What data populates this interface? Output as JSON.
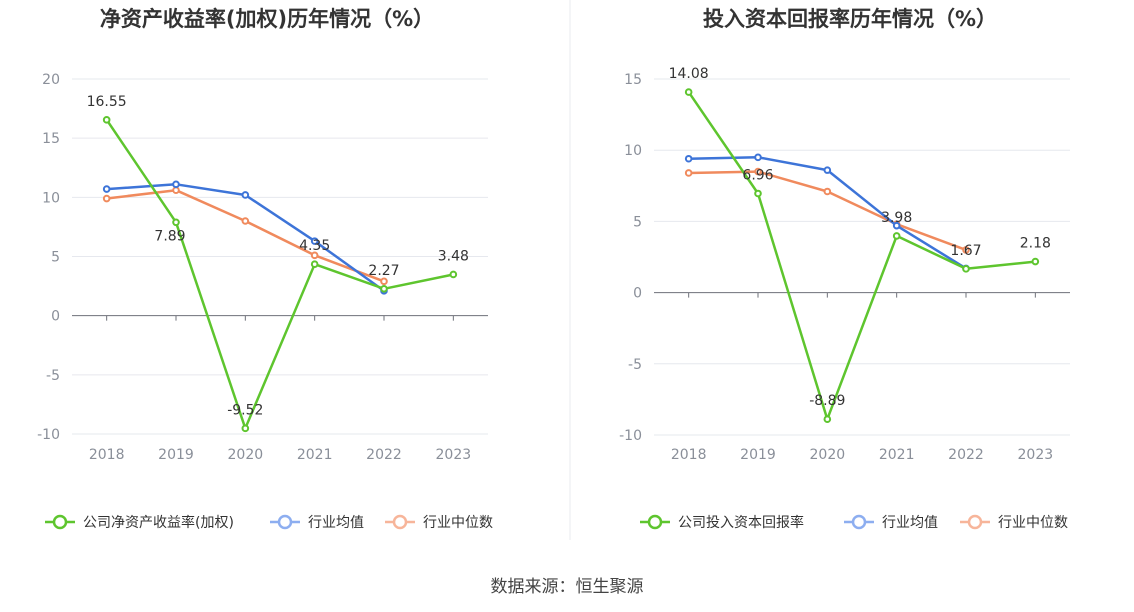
{
  "source_text": "数据来源：恒生聚源",
  "chart_data": [
    {
      "type": "line",
      "title": "净资产收益率(加权)历年情况（%）",
      "categories": [
        "2018",
        "2019",
        "2020",
        "2021",
        "2022",
        "2023"
      ],
      "ylim": [
        -10,
        20
      ],
      "yticks": [
        20,
        15,
        10,
        5,
        0,
        -5,
        -10
      ],
      "grid": true,
      "legend_position": "bottom",
      "series": [
        {
          "name": "公司净资产收益率(加权)",
          "color": "#5ec52e",
          "values": [
            16.55,
            7.89,
            -9.52,
            4.35,
            2.27,
            3.48
          ],
          "labels": [
            "16.55",
            "7.89",
            "-9.52",
            "4.35",
            "2.27",
            "3.48"
          ]
        },
        {
          "name": "行业均值",
          "color": "#3d74d8",
          "values": [
            10.7,
            11.1,
            10.2,
            6.3,
            2.1,
            null
          ]
        },
        {
          "name": "行业中位数",
          "color": "#f08a5d",
          "values": [
            9.9,
            10.6,
            8.0,
            5.1,
            2.9,
            null
          ]
        }
      ],
      "legend_colors": [
        "#5ec52e",
        "#8daef0",
        "#f7b59a"
      ]
    },
    {
      "type": "line",
      "title": "投入资本回报率历年情况（%）",
      "categories": [
        "2018",
        "2019",
        "2020",
        "2021",
        "2022",
        "2023"
      ],
      "ylim": [
        -10,
        15
      ],
      "yticks": [
        15,
        10,
        5,
        0,
        -5,
        -10
      ],
      "grid": true,
      "legend_position": "bottom",
      "series": [
        {
          "name": "公司投入资本回报率",
          "color": "#5ec52e",
          "values": [
            14.08,
            6.96,
            -8.89,
            3.98,
            1.67,
            2.18
          ],
          "labels": [
            "14.08",
            "6.96",
            "-8.89",
            "3.98",
            "1.67",
            "2.18"
          ]
        },
        {
          "name": "行业均值",
          "color": "#3d74d8",
          "values": [
            9.4,
            9.5,
            8.6,
            4.7,
            1.7,
            null
          ]
        },
        {
          "name": "行业中位数",
          "color": "#f08a5d",
          "values": [
            8.4,
            8.5,
            7.1,
            4.8,
            3.0,
            null
          ]
        }
      ],
      "legend_colors": [
        "#5ec52e",
        "#8daef0",
        "#f7b59a"
      ]
    }
  ]
}
